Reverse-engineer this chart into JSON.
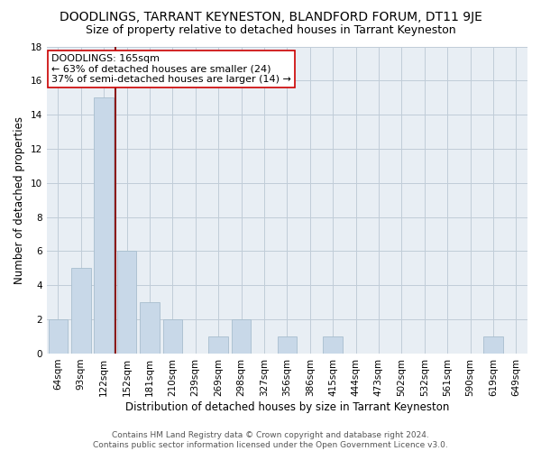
{
  "title": "DOODLINGS, TARRANT KEYNESTON, BLANDFORD FORUM, DT11 9JE",
  "subtitle": "Size of property relative to detached houses in Tarrant Keyneston",
  "xlabel": "Distribution of detached houses by size in Tarrant Keyneston",
  "ylabel": "Number of detached properties",
  "footer_line1": "Contains HM Land Registry data © Crown copyright and database right 2024.",
  "footer_line2": "Contains public sector information licensed under the Open Government Licence v3.0.",
  "categories": [
    "64sqm",
    "93sqm",
    "122sqm",
    "152sqm",
    "181sqm",
    "210sqm",
    "239sqm",
    "269sqm",
    "298sqm",
    "327sqm",
    "356sqm",
    "386sqm",
    "415sqm",
    "444sqm",
    "473sqm",
    "502sqm",
    "532sqm",
    "561sqm",
    "590sqm",
    "619sqm",
    "649sqm"
  ],
  "values": [
    2,
    5,
    15,
    6,
    3,
    2,
    0,
    1,
    2,
    0,
    1,
    0,
    1,
    0,
    0,
    0,
    0,
    0,
    0,
    1,
    0
  ],
  "bar_color": "#c8d8e8",
  "bar_edge_color": "#a8bece",
  "vline_x": 2.5,
  "vline_color": "#8b1a1a",
  "annotation_line1": "DOODLINGS: 165sqm",
  "annotation_line2": "← 63% of detached houses are smaller (24)",
  "annotation_line3": "37% of semi-detached houses are larger (14) →",
  "annotation_box_color": "white",
  "annotation_box_edge": "#cc0000",
  "ylim": [
    0,
    18
  ],
  "yticks": [
    0,
    2,
    4,
    6,
    8,
    10,
    12,
    14,
    16,
    18
  ],
  "grid_color": "#c0ccd8",
  "background_color": "#e8eef4",
  "title_fontsize": 10,
  "subtitle_fontsize": 9,
  "xlabel_fontsize": 8.5,
  "ylabel_fontsize": 8.5,
  "tick_fontsize": 7.5,
  "annotation_fontsize": 8,
  "footer_fontsize": 6.5
}
